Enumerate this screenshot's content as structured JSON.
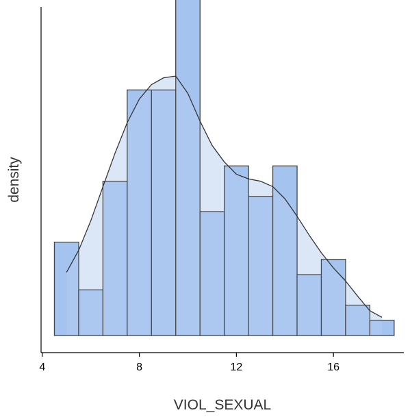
{
  "chart_data": {
    "type": "histogram-density",
    "xlabel": "VIOL_SEXUAL",
    "ylabel": "density",
    "xlim": [
      3.95,
      18.9
    ],
    "ylim": [
      0,
      0.17
    ],
    "x_ticks": [
      4,
      8,
      12,
      16
    ],
    "grid": false,
    "legend": "none",
    "bin_width": 1,
    "bins": [
      {
        "x0": 4.5,
        "x1": 5.5,
        "density": 0.0483
      },
      {
        "x0": 5.5,
        "x1": 6.5,
        "density": 0.0236
      },
      {
        "x0": 6.5,
        "x1": 7.5,
        "density": 0.0798
      },
      {
        "x0": 7.5,
        "x1": 8.5,
        "density": 0.127
      },
      {
        "x0": 8.5,
        "x1": 9.5,
        "density": 0.127
      },
      {
        "x0": 9.5,
        "x1": 10.5,
        "density": 0.1752
      },
      {
        "x0": 10.5,
        "x1": 11.5,
        "density": 0.0641
      },
      {
        "x0": 11.5,
        "x1": 12.5,
        "density": 0.0877
      },
      {
        "x0": 12.5,
        "x1": 13.5,
        "density": 0.072
      },
      {
        "x0": 13.5,
        "x1": 14.5,
        "density": 0.0877
      },
      {
        "x0": 14.5,
        "x1": 15.5,
        "density": 0.0315
      },
      {
        "x0": 15.5,
        "x1": 16.5,
        "density": 0.0394
      },
      {
        "x0": 16.5,
        "x1": 17.5,
        "density": 0.0157
      },
      {
        "x0": 17.5,
        "x1": 18.5,
        "density": 0.0079
      }
    ],
    "density_curve": {
      "x": [
        5.0,
        5.5,
        6.0,
        6.5,
        7.0,
        7.5,
        8.0,
        8.5,
        9.0,
        9.5,
        10.0,
        10.5,
        11.0,
        11.5,
        12.0,
        12.5,
        13.0,
        13.5,
        14.0,
        14.5,
        15.0,
        15.5,
        16.0,
        16.5,
        17.0,
        17.5,
        18.0
      ],
      "y": [
        0.0327,
        0.0441,
        0.0594,
        0.077,
        0.0944,
        0.1101,
        0.1223,
        0.1298,
        0.1333,
        0.1342,
        0.1252,
        0.1109,
        0.0983,
        0.0898,
        0.0834,
        0.081,
        0.0798,
        0.077,
        0.0707,
        0.0617,
        0.0519,
        0.0428,
        0.0349,
        0.0282,
        0.0203,
        0.0128,
        0.0094
      ]
    },
    "colors": {
      "bar_fill": "#a4c3ef",
      "bar_stroke": "#444444",
      "density_fill": "#dbe6f7",
      "density_line": "#333333",
      "axis": "#000000"
    }
  }
}
